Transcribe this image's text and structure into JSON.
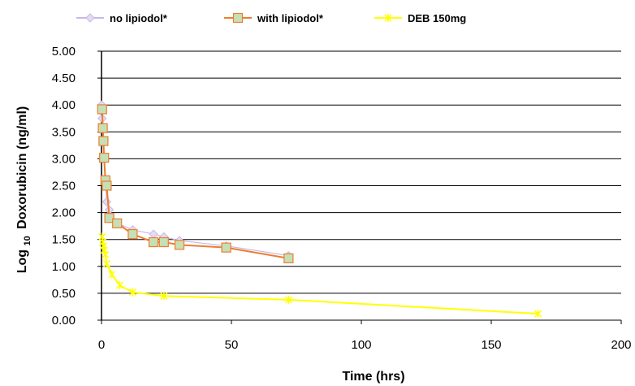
{
  "chart_data": {
    "type": "line",
    "title": "",
    "xlabel": "Time (hrs)",
    "ylabel_main": "Log",
    "ylabel_sub": "10",
    "ylabel_rest": "Doxorubicin (ng/ml)",
    "xlim": [
      0,
      200
    ],
    "ylim": [
      0,
      5
    ],
    "x_ticks": [
      0,
      50,
      100,
      150,
      200
    ],
    "x_tick_labels": [
      "0",
      "50",
      "100",
      "150",
      "200"
    ],
    "y_ticks": [
      0,
      0.5,
      1,
      1.5,
      2,
      2.5,
      3,
      3.5,
      4,
      4.5,
      5
    ],
    "y_tick_labels": [
      "0.00",
      "0.50",
      "1.00",
      "1.50",
      "2.00",
      "2.50",
      "3.00",
      "3.50",
      "4.00",
      "4.50",
      "5.00"
    ],
    "grid": "horizontal",
    "legend_position": "top",
    "series": [
      {
        "name": "no lipiodol*",
        "color": "#c9b8e6",
        "marker": "diamond",
        "x": [
          0.1,
          0.25,
          0.5,
          0.75,
          1,
          1.5,
          2,
          3,
          6,
          12,
          20,
          24,
          30,
          48,
          72
        ],
        "y": [
          4.0,
          3.75,
          3.55,
          3.3,
          3.0,
          2.55,
          2.2,
          2.05,
          1.8,
          1.68,
          1.6,
          1.55,
          1.48,
          1.38,
          1.2
        ]
      },
      {
        "name": "with lipiodol*",
        "color": "#ed7d31",
        "marker": "square",
        "marker_fill": "#c6e0b4",
        "x": [
          0.25,
          0.5,
          0.75,
          1,
          1.5,
          2,
          3,
          6,
          12,
          20,
          24,
          30,
          48,
          72
        ],
        "y": [
          3.92,
          3.57,
          3.33,
          3.02,
          2.6,
          2.5,
          1.9,
          1.8,
          1.6,
          1.45,
          1.45,
          1.4,
          1.35,
          1.15
        ]
      },
      {
        "name": "DEB 150mg",
        "color": "#ffff00",
        "marker": "star",
        "x": [
          0.25,
          0.5,
          0.75,
          1,
          1.5,
          2,
          4,
          7,
          12,
          24,
          72,
          168
        ],
        "y": [
          1.55,
          1.45,
          1.38,
          1.3,
          1.22,
          1.05,
          0.85,
          0.65,
          0.52,
          0.45,
          0.38,
          0.12
        ]
      }
    ]
  }
}
